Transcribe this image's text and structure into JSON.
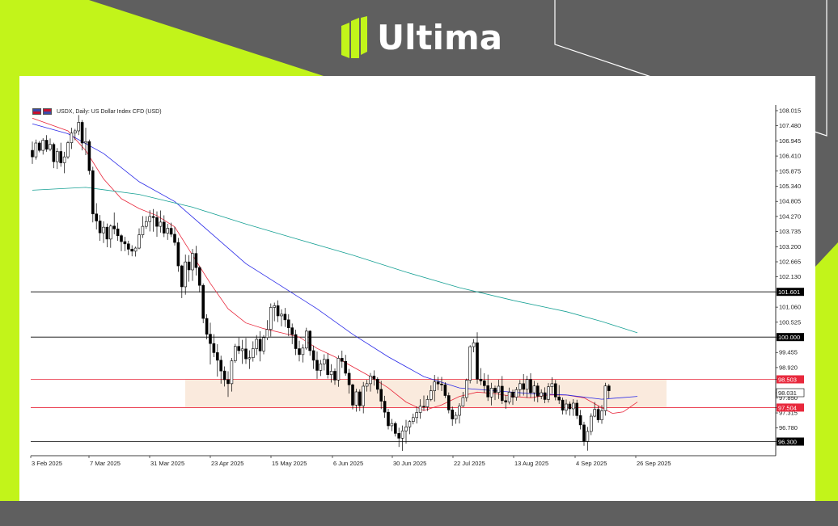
{
  "brand": {
    "name": "Ultima",
    "accent": "#c2f41a",
    "background": "#5f5f5f"
  },
  "chart_data": {
    "type": "candlestick",
    "title": "USDX, Daily:  US Dollar Index CFD (USD)",
    "x_tick_labels": [
      "3 Feb 2025",
      "7 Mar 2025",
      "31 Mar 2025",
      "23 Apr 2025",
      "15 May 2025",
      "6 Jun 2025",
      "30 Jun 2025",
      "22 Jul 2025",
      "13 Aug 2025",
      "4 Sep 2025",
      "26 Sep 2025"
    ],
    "y_tick_labels": [
      "108.015",
      "107.480",
      "106.945",
      "106.410",
      "105.875",
      "105.340",
      "104.805",
      "104.270",
      "103.735",
      "103.200",
      "102.665",
      "102.130",
      "101.601",
      "101.060",
      "100.525",
      "100.000",
      "99.455",
      "98.920",
      "98.503",
      "98.031",
      "97.850",
      "97.504",
      "97.315",
      "96.780",
      "96.300"
    ],
    "ylim": [
      95.8,
      108.1
    ],
    "grid": false,
    "horizontal_levels": [
      {
        "value": 101.601,
        "label": "101.601",
        "color": "#000000"
      },
      {
        "value": 100.0,
        "label": "100.000",
        "color": "#000000"
      },
      {
        "value": 98.503,
        "label": "98.503",
        "color": "#e8283c"
      },
      {
        "value": 97.504,
        "label": "97.504",
        "color": "#e8283c"
      },
      {
        "value": 96.3,
        "label": "96.300",
        "color": "#000000"
      }
    ],
    "current_price": {
      "value": 98.031,
      "label": "98.031"
    },
    "zone": {
      "from": 97.504,
      "to": 98.503,
      "color": "#faeadd"
    },
    "moving_averages": [
      {
        "color": "#e8283c",
        "anchors": [
          [
            0,
            107.75
          ],
          [
            10,
            107.3
          ],
          [
            15,
            106.6
          ],
          [
            20,
            105.6
          ],
          [
            25,
            104.9
          ],
          [
            30,
            104.55
          ],
          [
            35,
            104.3
          ],
          [
            40,
            103.9
          ],
          [
            45,
            102.9
          ],
          [
            50,
            101.9
          ],
          [
            55,
            101.0
          ],
          [
            60,
            100.5
          ],
          [
            65,
            100.3
          ],
          [
            70,
            100.15
          ],
          [
            75,
            100.0
          ],
          [
            80,
            99.6
          ],
          [
            85,
            99.3
          ],
          [
            90,
            98.95
          ],
          [
            95,
            98.6
          ],
          [
            100,
            98.2
          ],
          [
            105,
            97.7
          ],
          [
            110,
            97.4
          ],
          [
            115,
            97.6
          ],
          [
            120,
            97.9
          ],
          [
            125,
            98.05
          ],
          [
            130,
            98.0
          ],
          [
            135,
            97.9
          ],
          [
            140,
            97.85
          ],
          [
            145,
            97.95
          ],
          [
            150,
            97.95
          ],
          [
            155,
            97.85
          ],
          [
            160,
            97.5
          ],
          [
            163,
            97.3
          ],
          [
            166,
            97.35
          ],
          [
            170,
            97.7
          ]
        ]
      },
      {
        "color": "#2a2ae8",
        "anchors": [
          [
            0,
            107.55
          ],
          [
            10,
            107.2
          ],
          [
            20,
            106.5
          ],
          [
            30,
            105.5
          ],
          [
            40,
            104.8
          ],
          [
            50,
            103.7
          ],
          [
            60,
            102.6
          ],
          [
            70,
            101.8
          ],
          [
            80,
            101.0
          ],
          [
            90,
            100.1
          ],
          [
            100,
            99.3
          ],
          [
            110,
            98.6
          ],
          [
            120,
            98.2
          ],
          [
            130,
            98.1
          ],
          [
            140,
            98.0
          ],
          [
            150,
            97.95
          ],
          [
            160,
            97.8
          ],
          [
            170,
            97.9
          ]
        ]
      },
      {
        "color": "#16a094",
        "anchors": [
          [
            0,
            105.2
          ],
          [
            15,
            105.3
          ],
          [
            30,
            105.05
          ],
          [
            45,
            104.6
          ],
          [
            60,
            104.0
          ],
          [
            75,
            103.45
          ],
          [
            90,
            102.9
          ],
          [
            105,
            102.3
          ],
          [
            120,
            101.75
          ],
          [
            135,
            101.3
          ],
          [
            150,
            100.9
          ],
          [
            160,
            100.55
          ],
          [
            165,
            100.35
          ],
          [
            170,
            100.15
          ]
        ]
      }
    ],
    "ohlc": [
      [
        106.61,
        106.92,
        106.13,
        106.38
      ],
      [
        106.38,
        106.99,
        106.28,
        106.87
      ],
      [
        106.87,
        106.94,
        106.54,
        106.61
      ],
      [
        106.61,
        107.04,
        106.46,
        106.97
      ],
      [
        106.97,
        107.15,
        106.56,
        106.65
      ],
      [
        106.65,
        107.03,
        106.58,
        106.82
      ],
      [
        106.82,
        106.88,
        105.98,
        106.21
      ],
      [
        106.21,
        106.69,
        105.95,
        106.57
      ],
      [
        106.57,
        106.88,
        106.03,
        106.17
      ],
      [
        106.17,
        106.56,
        105.8,
        106.38
      ],
      [
        106.38,
        106.94,
        106.31,
        106.88
      ],
      [
        106.88,
        107.41,
        106.66,
        107.22
      ],
      [
        107.22,
        107.37,
        106.97,
        107.3
      ],
      [
        107.3,
        107.86,
        107.15,
        107.6
      ],
      [
        107.6,
        107.68,
        106.61,
        106.87
      ],
      [
        106.87,
        107.41,
        106.44,
        106.92
      ],
      [
        106.92,
        106.99,
        105.75,
        105.89
      ],
      [
        105.89,
        106.03,
        104.06,
        104.36
      ],
      [
        104.36,
        104.74,
        103.81,
        104.11
      ],
      [
        104.11,
        104.32,
        103.41,
        103.69
      ],
      [
        103.69,
        104.1,
        103.33,
        103.89
      ],
      [
        103.89,
        104.02,
        103.18,
        103.47
      ],
      [
        103.47,
        103.99,
        103.16,
        103.93
      ],
      [
        103.93,
        104.41,
        103.64,
        103.83
      ],
      [
        103.83,
        104.05,
        103.41,
        103.59
      ],
      [
        103.59,
        103.65,
        103.04,
        103.38
      ],
      [
        103.38,
        103.55,
        103.04,
        103.3
      ],
      [
        103.3,
        103.41,
        102.9,
        103.11
      ],
      [
        103.11,
        103.25,
        102.86,
        103.04
      ],
      [
        103.04,
        103.2,
        102.85,
        103.15
      ],
      [
        103.15,
        103.85,
        103.11,
        103.62
      ],
      [
        103.62,
        104.28,
        103.51,
        103.92
      ],
      [
        103.92,
        104.28,
        103.83,
        104.09
      ],
      [
        104.09,
        104.49,
        103.74,
        104.27
      ],
      [
        104.27,
        104.53,
        103.73,
        104.23
      ],
      [
        104.23,
        104.45,
        103.55,
        103.92
      ],
      [
        103.92,
        104.48,
        103.7,
        104.07
      ],
      [
        104.07,
        104.31,
        103.54,
        103.68
      ],
      [
        103.68,
        104.01,
        103.44,
        103.85
      ],
      [
        103.85,
        104.05,
        103.54,
        103.64
      ],
      [
        103.64,
        103.9,
        103.24,
        103.35
      ],
      [
        103.35,
        103.51,
        102.31,
        102.52
      ],
      [
        102.52,
        102.56,
        101.38,
        101.78
      ],
      [
        101.78,
        102.92,
        101.5,
        102.66
      ],
      [
        102.66,
        102.9,
        101.96,
        102.38
      ],
      [
        102.38,
        103.12,
        101.99,
        102.96
      ],
      [
        102.96,
        103.23,
        102.18,
        102.46
      ],
      [
        102.46,
        102.52,
        101.58,
        101.83
      ],
      [
        101.83,
        101.9,
        100.49,
        100.66
      ],
      [
        100.66,
        100.81,
        99.92,
        100.1
      ],
      [
        100.1,
        100.51,
        99.03,
        99.77
      ],
      [
        99.77,
        100.1,
        99.29,
        99.45
      ],
      [
        99.45,
        99.75,
        98.6,
        99.18
      ],
      [
        99.18,
        99.34,
        98.35,
        98.8
      ],
      [
        98.8,
        98.96,
        98.25,
        98.49
      ],
      [
        98.49,
        98.79,
        97.88,
        98.35
      ],
      [
        98.35,
        99.26,
        98.07,
        99.16
      ],
      [
        99.16,
        99.76,
        99.09,
        99.67
      ],
      [
        99.67,
        99.98,
        99.4,
        99.52
      ],
      [
        99.52,
        99.9,
        99.05,
        99.58
      ],
      [
        99.58,
        99.97,
        99.05,
        99.23
      ],
      [
        99.23,
        99.53,
        98.87,
        99.27
      ],
      [
        99.27,
        99.85,
        99.13,
        99.59
      ],
      [
        99.59,
        100.07,
        99.36,
        99.92
      ],
      [
        99.92,
        100.21,
        99.14,
        99.51
      ],
      [
        99.51,
        100.07,
        99.39,
        99.98
      ],
      [
        99.98,
        100.6,
        99.89,
        100.27
      ],
      [
        100.27,
        101.19,
        100.02,
        101.05
      ],
      [
        101.05,
        101.22,
        100.56,
        101.11
      ],
      [
        101.11,
        101.3,
        100.53,
        100.75
      ],
      [
        100.75,
        100.98,
        100.38,
        100.81
      ],
      [
        100.81,
        101.03,
        100.36,
        100.61
      ],
      [
        100.61,
        100.81,
        100.03,
        100.33
      ],
      [
        100.33,
        100.48,
        99.75,
        100.09
      ],
      [
        100.09,
        100.26,
        99.36,
        99.59
      ],
      [
        99.59,
        99.87,
        99.14,
        99.38
      ],
      [
        99.38,
        99.74,
        99.1,
        99.61
      ],
      [
        99.61,
        100.33,
        99.55,
        100.21
      ],
      [
        100.21,
        100.24,
        99.34,
        99.52
      ],
      [
        99.52,
        99.7,
        98.87,
        99.18
      ],
      [
        99.18,
        99.49,
        98.52,
        98.82
      ],
      [
        98.82,
        99.19,
        98.62,
        99.05
      ],
      [
        99.05,
        99.39,
        98.82,
        99.21
      ],
      [
        99.21,
        99.42,
        98.53,
        98.67
      ],
      [
        98.67,
        99.04,
        98.39,
        98.79
      ],
      [
        98.79,
        98.89,
        98.31,
        98.48
      ],
      [
        98.48,
        99.35,
        98.24,
        99.25
      ],
      [
        99.25,
        99.52,
        98.91,
        99.14
      ],
      [
        99.14,
        99.37,
        98.63,
        98.72
      ],
      [
        98.72,
        98.87,
        98.0,
        98.31
      ],
      [
        98.31,
        98.35,
        97.44,
        97.59
      ],
      [
        97.59,
        98.17,
        97.36,
        98.06
      ],
      [
        98.06,
        98.15,
        97.38,
        97.57
      ],
      [
        97.57,
        98.41,
        97.3,
        98.26
      ],
      [
        98.26,
        98.48,
        98.07,
        98.35
      ],
      [
        98.35,
        98.73,
        98.07,
        98.62
      ],
      [
        98.62,
        98.82,
        98.28,
        98.51
      ],
      [
        98.51,
        98.58,
        98.0,
        98.15
      ],
      [
        98.15,
        98.45,
        97.45,
        97.73
      ],
      [
        97.73,
        97.92,
        97.14,
        97.34
      ],
      [
        97.34,
        97.46,
        96.73,
        96.86
      ],
      [
        96.86,
        97.1,
        96.67,
        96.94
      ],
      [
        96.94,
        97.01,
        96.48,
        96.59
      ],
      [
        96.59,
        96.79,
        96.11,
        96.42
      ],
      [
        96.42,
        96.87,
        95.97,
        96.68
      ],
      [
        96.68,
        97.07,
        96.23,
        96.82
      ],
      [
        96.82,
        97.06,
        96.56,
        97.01
      ],
      [
        97.01,
        97.29,
        96.91,
        97.15
      ],
      [
        97.15,
        97.54,
        96.94,
        97.33
      ],
      [
        97.33,
        97.8,
        97.11,
        97.55
      ],
      [
        97.55,
        97.93,
        97.39,
        97.53
      ],
      [
        97.53,
        97.93,
        97.38,
        97.79
      ],
      [
        97.79,
        98.29,
        97.73,
        98.1
      ],
      [
        98.1,
        98.66,
        97.72,
        98.41
      ],
      [
        98.41,
        98.59,
        98.12,
        98.34
      ],
      [
        98.34,
        98.59,
        98.09,
        98.31
      ],
      [
        98.31,
        98.4,
        97.84,
        97.93
      ],
      [
        97.93,
        98.04,
        97.3,
        97.42
      ],
      [
        97.42,
        97.54,
        96.86,
        97.1
      ],
      [
        97.1,
        97.35,
        96.93,
        97.23
      ],
      [
        97.23,
        97.66,
        96.94,
        97.56
      ],
      [
        97.56,
        98.06,
        97.53,
        97.86
      ],
      [
        97.86,
        98.53,
        97.72,
        98.47
      ],
      [
        98.47,
        99.71,
        98.36,
        99.66
      ],
      [
        99.66,
        99.93,
        99.46,
        99.8
      ],
      [
        99.8,
        100.17,
        98.35,
        98.51
      ],
      [
        98.51,
        98.9,
        98.3,
        98.45
      ],
      [
        98.45,
        98.72,
        98.02,
        98.28
      ],
      [
        98.28,
        98.67,
        97.74,
        97.88
      ],
      [
        97.88,
        98.38,
        97.58,
        98.19
      ],
      [
        98.19,
        98.28,
        97.77,
        98.04
      ],
      [
        98.04,
        98.49,
        97.81,
        98.26
      ],
      [
        98.26,
        98.62,
        97.63,
        97.75
      ],
      [
        97.75,
        97.95,
        97.46,
        97.7
      ],
      [
        97.7,
        98.21,
        97.62,
        98.05
      ],
      [
        98.05,
        98.14,
        97.6,
        97.87
      ],
      [
        97.87,
        98.23,
        97.75,
        98.14
      ],
      [
        98.14,
        98.48,
        97.9,
        98.35
      ],
      [
        98.35,
        98.69,
        97.93,
        98.15
      ],
      [
        98.15,
        98.63,
        97.85,
        98.5
      ],
      [
        98.5,
        98.72,
        97.86,
        98.03
      ],
      [
        98.03,
        98.45,
        97.72,
        98.27
      ],
      [
        98.27,
        98.38,
        97.69,
        97.91
      ],
      [
        97.91,
        98.15,
        97.8,
        98.03
      ],
      [
        98.03,
        98.22,
        97.66,
        97.79
      ],
      [
        97.79,
        98.37,
        97.68,
        98.24
      ],
      [
        98.24,
        98.58,
        98.0,
        98.35
      ],
      [
        98.35,
        98.48,
        97.76,
        97.88
      ],
      [
        97.88,
        98.3,
        97.63,
        97.77
      ],
      [
        97.77,
        97.86,
        97.26,
        97.41
      ],
      [
        97.41,
        97.79,
        97.26,
        97.63
      ],
      [
        97.63,
        97.72,
        97.22,
        97.46
      ],
      [
        97.46,
        97.8,
        97.21,
        97.66
      ],
      [
        97.66,
        97.78,
        97.1,
        97.22
      ],
      [
        97.22,
        97.42,
        96.73,
        96.89
      ],
      [
        96.89,
        97.0,
        96.15,
        96.31
      ],
      [
        96.31,
        96.82,
        95.98,
        96.66
      ],
      [
        96.66,
        97.3,
        96.53,
        97.2
      ],
      [
        97.2,
        97.7,
        97.16,
        97.44
      ],
      [
        97.44,
        97.56,
        96.97,
        97.07
      ],
      [
        97.07,
        97.59,
        96.93,
        97.39
      ],
      [
        97.39,
        98.38,
        97.22,
        98.27
      ],
      [
        98.27,
        98.34,
        97.83,
        98.1
      ]
    ]
  }
}
